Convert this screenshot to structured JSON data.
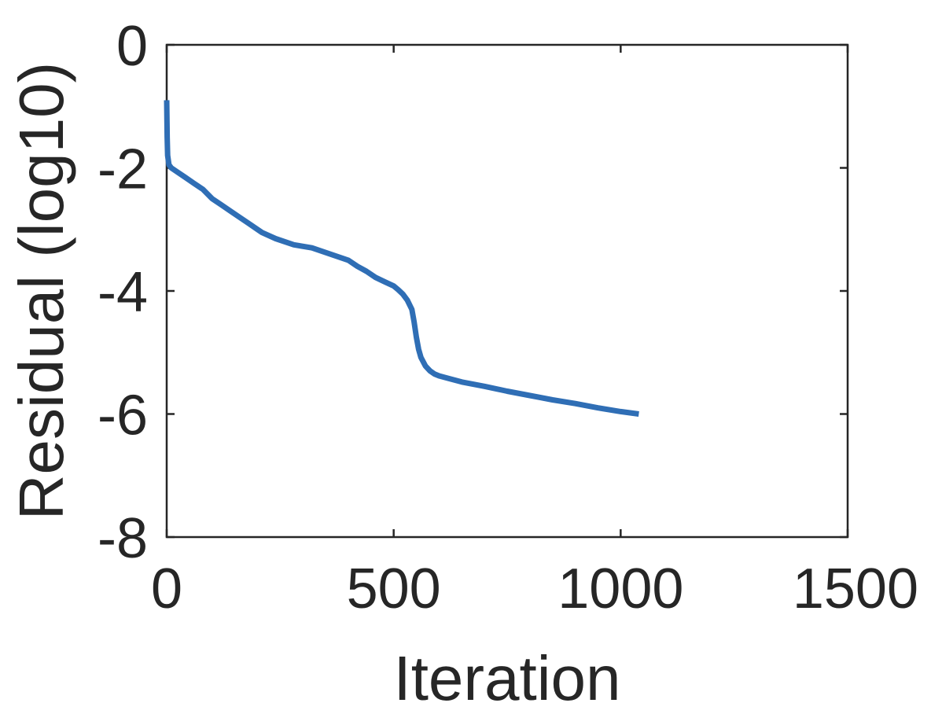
{
  "chart_data": {
    "type": "line",
    "title": "",
    "xlabel": "Iteration",
    "ylabel": "Residual (log10)",
    "xlim": [
      0,
      1500
    ],
    "ylim": [
      -8,
      0
    ],
    "xticks": [
      0,
      500,
      1000,
      1500
    ],
    "xtick_labels": [
      "0",
      "500",
      "1000",
      "1500"
    ],
    "yticks": [
      0,
      -2,
      -4,
      -6,
      -8
    ],
    "ytick_labels": [
      "0",
      "-2",
      "-4",
      "-6",
      "-8"
    ],
    "grid": false,
    "legend": "none",
    "series": [
      {
        "color": "#2f6eb5",
        "x": [
          0,
          1,
          2,
          5,
          10,
          20,
          40,
          60,
          80,
          100,
          120,
          140,
          160,
          180,
          200,
          210,
          240,
          280,
          320,
          360,
          400,
          420,
          440,
          460,
          480,
          500,
          510,
          520,
          530,
          540,
          545,
          550,
          555,
          560,
          565,
          570,
          580,
          590,
          600,
          620,
          650,
          700,
          750,
          800,
          850,
          900,
          950,
          1000,
          1040
        ],
        "y": [
          -0.9,
          -1.5,
          -1.8,
          -1.95,
          -2.0,
          -2.05,
          -2.15,
          -2.25,
          -2.35,
          -2.5,
          -2.6,
          -2.7,
          -2.8,
          -2.9,
          -3.0,
          -3.05,
          -3.15,
          -3.25,
          -3.3,
          -3.4,
          -3.5,
          -3.6,
          -3.68,
          -3.78,
          -3.85,
          -3.92,
          -3.98,
          -4.05,
          -4.15,
          -4.3,
          -4.5,
          -4.75,
          -4.95,
          -5.08,
          -5.15,
          -5.22,
          -5.3,
          -5.35,
          -5.38,
          -5.42,
          -5.48,
          -5.55,
          -5.63,
          -5.7,
          -5.77,
          -5.83,
          -5.9,
          -5.96,
          -6.0
        ]
      }
    ]
  }
}
